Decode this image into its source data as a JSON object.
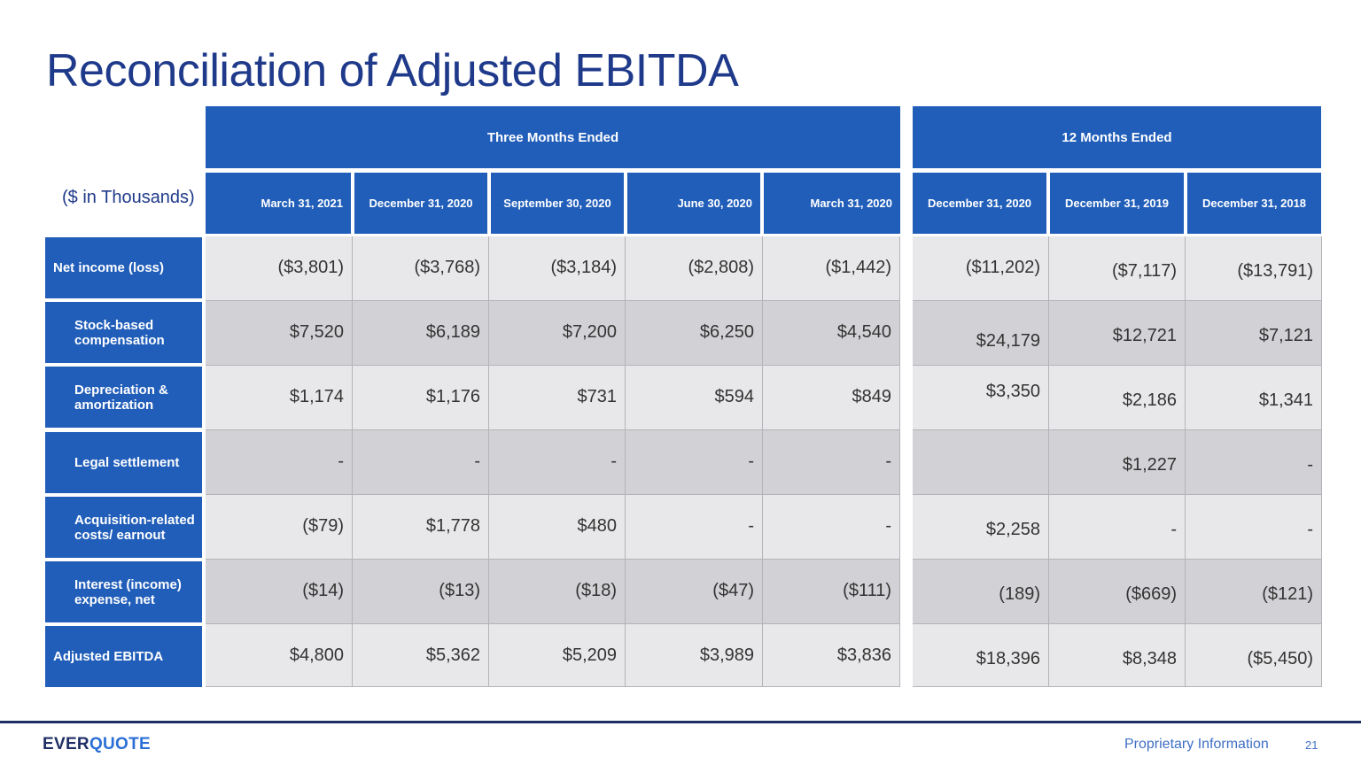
{
  "title": "Reconciliation of Adjusted EBITDA",
  "units_label": "($ in Thousands)",
  "group_headers": [
    "Three Months Ended",
    "12 Months Ended"
  ],
  "columns": [
    "March 31, 2021",
    "December 31, 2020",
    "September 30, 2020",
    "June 30, 2020",
    "March 31, 2020",
    "December 31, 2020",
    "December 31, 2019",
    "December 31, 2018"
  ],
  "rows": [
    {
      "label": "Net income (loss)",
      "values": [
        "($3,801)",
        "($3,768)",
        "($3,184)",
        "($2,808)",
        "($1,442)",
        "($11,202)",
        "($7,117)",
        "($13,791)"
      ]
    },
    {
      "label": "Stock-based compensation",
      "values": [
        "$7,520",
        "$6,189",
        "$7,200",
        "$6,250",
        "$4,540",
        "$24,179",
        "$12,721",
        "$7,121"
      ]
    },
    {
      "label": "Depreciation & amortization",
      "values": [
        "$1,174",
        "$1,176",
        "$731",
        "$594",
        "$849",
        "$3,350",
        "$2,186",
        "$1,341"
      ]
    },
    {
      "label": "Legal settlement",
      "values": [
        "-",
        "-",
        "-",
        "-",
        "-",
        "",
        "$1,227",
        "-"
      ]
    },
    {
      "label": "Acquisition-related costs/ earnout",
      "values": [
        "($79)",
        "$1,778",
        "$480",
        "-",
        "-",
        "$2,258",
        "-",
        "-"
      ]
    },
    {
      "label": "Interest (income) expense, net",
      "values": [
        "($14)",
        "($13)",
        "($18)",
        "($47)",
        "($111)",
        "(189)",
        "($669)",
        "($121)"
      ]
    },
    {
      "label": "Adjusted EBITDA",
      "values": [
        "$4,800",
        "$5,362",
        "$5,209",
        "$3,989",
        "$3,836",
        "$18,396",
        "$8,348",
        "($5,450)"
      ]
    }
  ],
  "footer": {
    "logo_part1": "EVER",
    "logo_part2": "QUOTE",
    "text": "Proprietary Information",
    "page_number": "21"
  },
  "colors": {
    "header_blue": "#215eb9",
    "title_blue": "#1f3a8a",
    "row_light": "#e8e8ea",
    "row_dark": "#d2d2d6"
  }
}
